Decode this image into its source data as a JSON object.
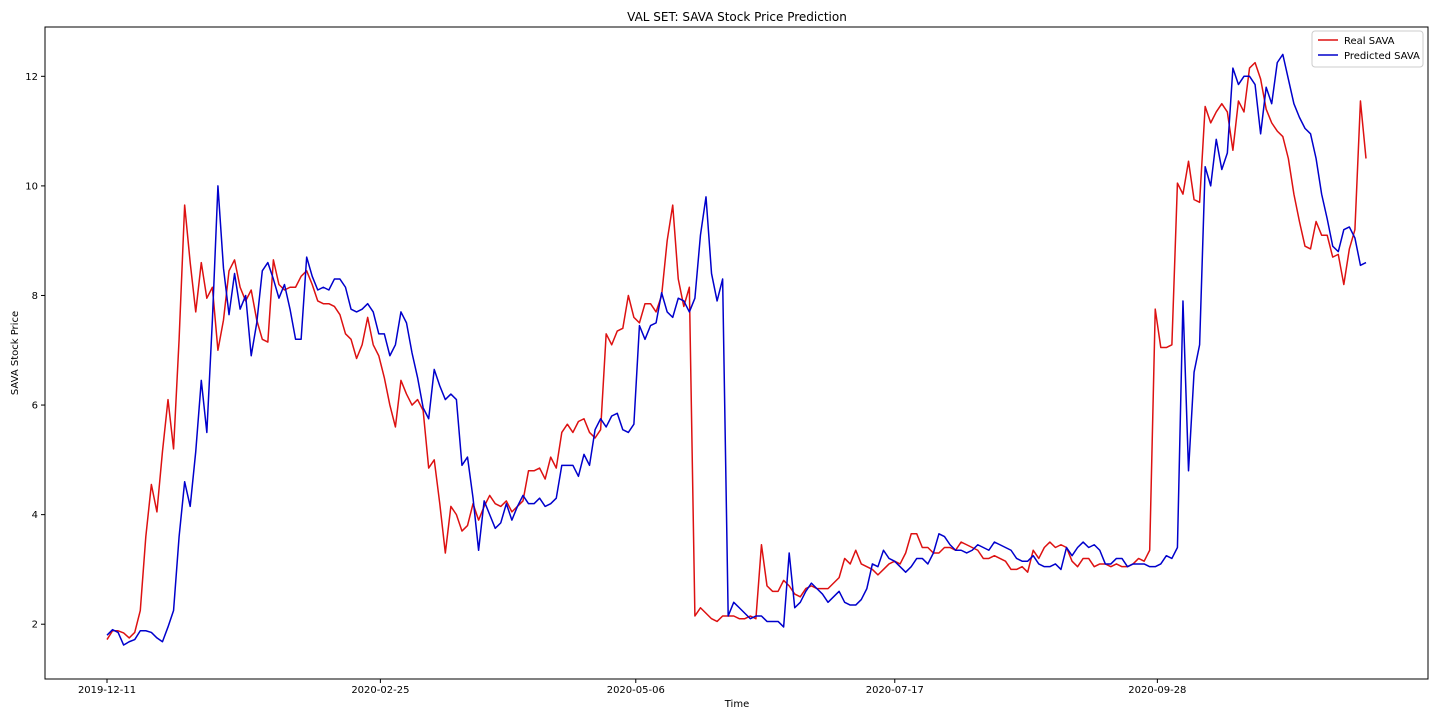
{
  "chart_data": {
    "type": "line",
    "title": "VAL SET: SAVA Stock Price Prediction",
    "xlabel": "Time",
    "ylabel": "SAVA Stock Price",
    "x_ticks": [
      "2019-12-11",
      "2020-02-25",
      "2020-05-06",
      "2020-07-17",
      "2020-09-28"
    ],
    "y_ticks": [
      2,
      4,
      6,
      8,
      10,
      12
    ],
    "ylim": [
      1.0,
      12.9
    ],
    "legend_position": "top-right",
    "grid": false,
    "x_start": "2019-12-11",
    "x_end": "2020-11-25",
    "series": [
      {
        "name": "Real SAVA",
        "color": "#dd1111",
        "values": [
          1.72,
          1.88,
          1.88,
          1.84,
          1.75,
          1.85,
          2.25,
          3.6,
          4.55,
          4.05,
          5.15,
          6.1,
          5.2,
          7.2,
          9.65,
          8.6,
          7.7,
          8.6,
          7.95,
          8.15,
          7.0,
          7.55,
          8.45,
          8.65,
          8.15,
          7.9,
          8.1,
          7.55,
          7.2,
          7.15,
          8.65,
          8.2,
          8.1,
          8.15,
          8.15,
          8.35,
          8.45,
          8.2,
          7.9,
          7.85,
          7.85,
          7.8,
          7.65,
          7.3,
          7.2,
          6.85,
          7.1,
          7.6,
          7.1,
          6.9,
          6.5,
          6.0,
          5.6,
          6.45,
          6.2,
          6.0,
          6.1,
          5.9,
          4.85,
          5.0,
          4.2,
          3.3,
          4.15,
          4.0,
          3.7,
          3.8,
          4.2,
          3.9,
          4.15,
          4.35,
          4.2,
          4.15,
          4.25,
          4.05,
          4.15,
          4.25,
          4.8,
          4.8,
          4.85,
          4.65,
          5.05,
          4.85,
          5.5,
          5.65,
          5.5,
          5.7,
          5.75,
          5.5,
          5.4,
          5.55,
          7.3,
          7.1,
          7.35,
          7.4,
          8.0,
          7.6,
          7.5,
          7.85,
          7.85,
          7.7,
          8.0,
          9.0,
          9.65,
          8.3,
          7.8,
          8.15,
          2.15,
          2.3,
          2.2,
          2.1,
          2.05,
          2.15,
          2.15,
          2.15,
          2.1,
          2.1,
          2.15,
          2.1,
          3.45,
          2.7,
          2.6,
          2.6,
          2.8,
          2.7,
          2.55,
          2.5,
          2.65,
          2.7,
          2.65,
          2.65,
          2.65,
          2.75,
          2.85,
          3.2,
          3.1,
          3.35,
          3.1,
          3.05,
          3.0,
          2.9,
          3.0,
          3.1,
          3.15,
          3.1,
          3.3,
          3.65,
          3.65,
          3.4,
          3.4,
          3.3,
          3.3,
          3.4,
          3.4,
          3.35,
          3.5,
          3.45,
          3.4,
          3.35,
          3.2,
          3.2,
          3.25,
          3.2,
          3.15,
          3.0,
          3.0,
          3.05,
          2.95,
          3.35,
          3.2,
          3.4,
          3.5,
          3.4,
          3.45,
          3.4,
          3.15,
          3.05,
          3.2,
          3.2,
          3.05,
          3.1,
          3.1,
          3.05,
          3.1,
          3.05,
          3.05,
          3.1,
          3.2,
          3.15,
          3.35,
          7.75,
          7.05,
          7.05,
          7.1,
          10.05,
          9.85,
          10.45,
          9.75,
          9.7,
          11.45,
          11.15,
          11.35,
          11.5,
          11.35,
          10.65,
          11.55,
          11.35,
          12.15,
          12.25,
          11.95,
          11.4,
          11.15,
          11.0,
          10.9,
          10.5,
          9.85,
          9.35,
          8.9,
          8.85,
          9.35,
          9.1,
          9.1,
          8.7,
          8.75,
          8.2,
          8.85,
          9.2,
          11.55,
          10.5
        ]
      },
      {
        "name": "Predicted SAVA",
        "color": "#0000cc",
        "values": [
          1.8,
          1.9,
          1.85,
          1.62,
          1.68,
          1.72,
          1.88,
          1.88,
          1.85,
          1.75,
          1.68,
          1.95,
          2.25,
          3.6,
          4.6,
          4.15,
          5.15,
          6.45,
          5.5,
          7.55,
          10.0,
          8.5,
          7.65,
          8.4,
          7.75,
          8.0,
          6.9,
          7.5,
          8.45,
          8.6,
          8.3,
          7.95,
          8.2,
          7.75,
          7.2,
          7.2,
          8.7,
          8.35,
          8.1,
          8.15,
          8.1,
          8.3,
          8.3,
          8.15,
          7.75,
          7.7,
          7.75,
          7.85,
          7.7,
          7.3,
          7.3,
          6.9,
          7.1,
          7.7,
          7.5,
          6.95,
          6.5,
          5.95,
          5.75,
          6.65,
          6.35,
          6.1,
          6.2,
          6.1,
          4.9,
          5.05,
          4.3,
          3.35,
          4.25,
          4.0,
          3.75,
          3.85,
          4.2,
          3.9,
          4.15,
          4.35,
          4.2,
          4.2,
          4.3,
          4.15,
          4.2,
          4.3,
          4.9,
          4.9,
          4.9,
          4.7,
          5.1,
          4.9,
          5.55,
          5.75,
          5.6,
          5.8,
          5.85,
          5.55,
          5.5,
          5.65,
          7.45,
          7.2,
          7.45,
          7.5,
          8.05,
          7.7,
          7.6,
          7.95,
          7.9,
          7.7,
          7.95,
          9.1,
          9.8,
          8.4,
          7.9,
          8.3,
          2.15,
          2.4,
          2.3,
          2.2,
          2.1,
          2.15,
          2.15,
          2.05,
          2.05,
          2.05,
          1.95,
          3.3,
          2.3,
          2.4,
          2.6,
          2.75,
          2.65,
          2.55,
          2.4,
          2.5,
          2.6,
          2.4,
          2.35,
          2.35,
          2.45,
          2.65,
          3.1,
          3.05,
          3.35,
          3.2,
          3.15,
          3.05,
          2.95,
          3.05,
          3.2,
          3.2,
          3.1,
          3.3,
          3.65,
          3.6,
          3.45,
          3.35,
          3.35,
          3.3,
          3.35,
          3.45,
          3.4,
          3.35,
          3.5,
          3.45,
          3.4,
          3.35,
          3.2,
          3.15,
          3.15,
          3.25,
          3.1,
          3.05,
          3.05,
          3.1,
          3.0,
          3.4,
          3.25,
          3.4,
          3.5,
          3.4,
          3.45,
          3.35,
          3.1,
          3.1,
          3.2,
          3.2,
          3.05,
          3.1,
          3.1,
          3.1,
          3.05,
          3.05,
          3.1,
          3.25,
          3.2,
          3.4,
          7.9,
          4.8,
          6.6,
          7.1,
          10.35,
          10.0,
          10.85,
          10.3,
          10.6,
          12.15,
          11.85,
          12.0,
          12.0,
          11.85,
          10.95,
          11.8,
          11.5,
          12.25,
          12.4,
          11.95,
          11.5,
          11.25,
          11.05,
          10.95,
          10.5,
          9.85,
          9.4,
          8.9,
          8.8,
          9.2,
          9.25,
          9.05,
          8.55,
          8.6
        ]
      }
    ]
  }
}
